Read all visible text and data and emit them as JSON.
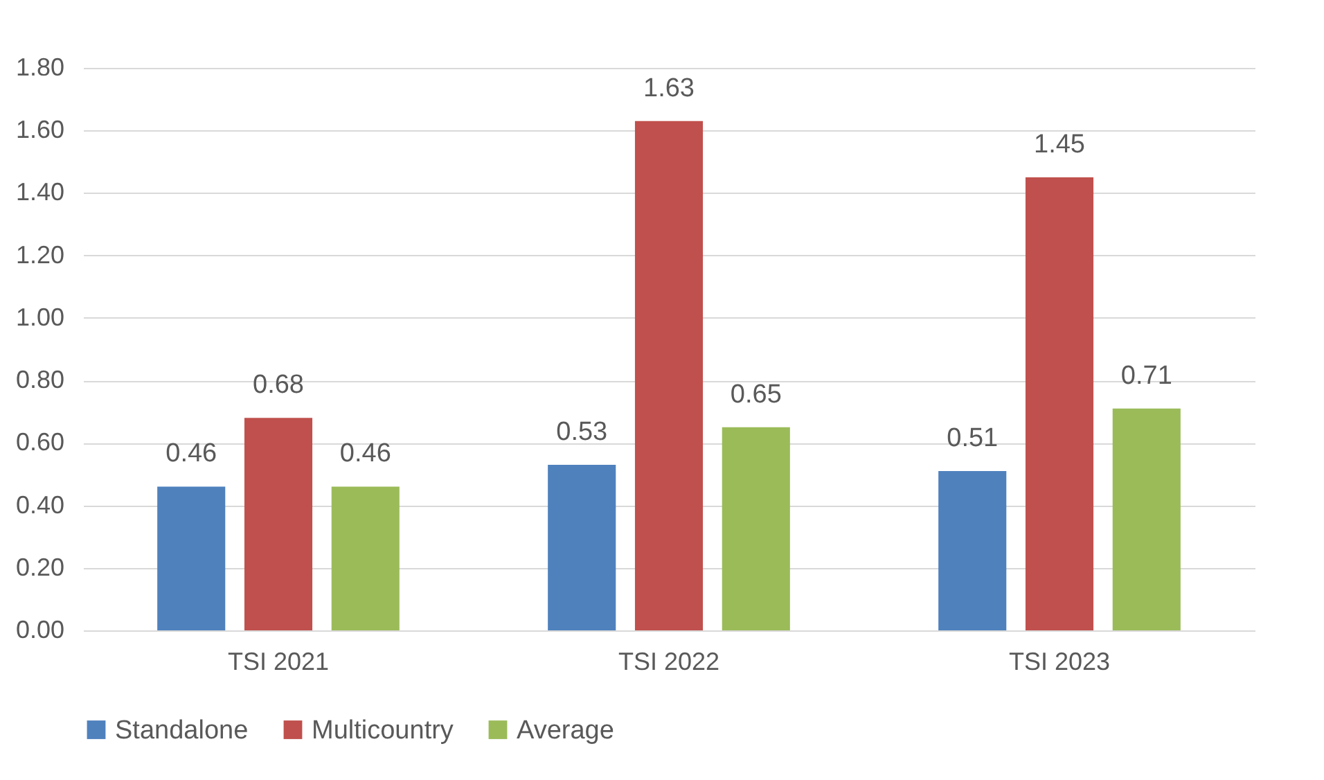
{
  "chart_data": {
    "type": "bar",
    "categories": [
      "TSI 2021",
      "TSI 2022",
      "TSI 2023"
    ],
    "series": [
      {
        "name": "Standalone",
        "color": "#4f81bd",
        "values": [
          0.46,
          0.53,
          0.51
        ]
      },
      {
        "name": "Multicountry",
        "color": "#c0504d",
        "values": [
          0.68,
          1.63,
          1.45
        ]
      },
      {
        "name": "Average",
        "color": "#9bbb59",
        "values": [
          0.46,
          0.65,
          0.71
        ]
      }
    ],
    "ylim": [
      0,
      1.8
    ],
    "yticks": [
      {
        "value": 0,
        "label": "0.00"
      },
      {
        "value": 0.2,
        "label": "0.20"
      },
      {
        "value": 0.4,
        "label": "0.40"
      },
      {
        "value": 0.6,
        "label": "0.60"
      },
      {
        "value": 0.8,
        "label": "0.80"
      },
      {
        "value": 1,
        "label": "1.00"
      },
      {
        "value": 1.2,
        "label": "1.20"
      },
      {
        "value": 1.4,
        "label": "1.40"
      },
      {
        "value": 1.6,
        "label": "1.60"
      },
      {
        "value": 1.8,
        "label": "1.80"
      }
    ],
    "grid": "y",
    "legend": "bottom",
    "data_labels": true
  }
}
